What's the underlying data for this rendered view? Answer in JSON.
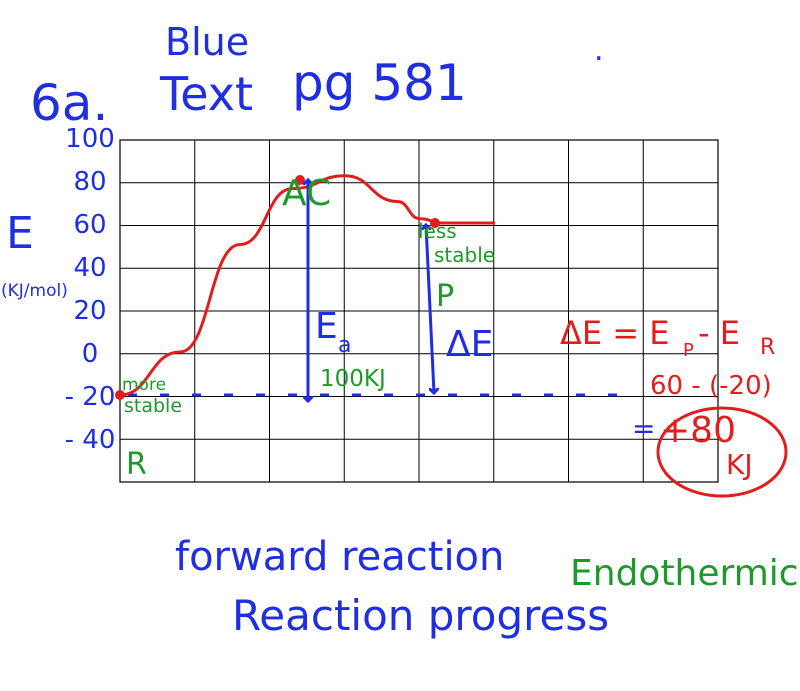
{
  "colors": {
    "blue": "#1f2ee0",
    "green": "#1f9a2a",
    "red": "#e21d1d",
    "grid": "#000000"
  },
  "header": {
    "problem_label": "6a.",
    "blue_label": "Blue",
    "text_label": "Text",
    "page_ref": "pg 581",
    "dot": "."
  },
  "chart_data": {
    "type": "line",
    "title": "",
    "xlabel": "Reaction progress",
    "ylabel": "E",
    "yunits": "(KJ/mol)",
    "yticks": [
      100,
      80,
      60,
      40,
      20,
      0,
      -20,
      -40
    ],
    "ylim": [
      -40,
      100
    ],
    "xlim": [
      0,
      8
    ],
    "grid": true,
    "series": [
      {
        "name": "",
        "x": [
          0,
          0.8,
          1.6,
          2.3,
          3.0,
          3.7,
          4.0,
          4.3,
          5.0
        ],
        "y": [
          -20,
          0,
          50,
          76,
          82,
          70,
          62,
          60,
          60
        ]
      }
    ],
    "points": [
      {
        "label": "R",
        "x": 0,
        "y": -20
      },
      {
        "label": "AC",
        "x": 2.4,
        "y": 80
      },
      {
        "label": "P",
        "x": 4.2,
        "y": 60
      }
    ],
    "annotations": {
      "reactant_label": "R",
      "reactant_note_1": "more",
      "reactant_note_2": "stable",
      "activated_complex_label": "AC",
      "product_label": "P",
      "product_note_1": "less",
      "product_note_2": "stable",
      "ea_symbol": "E",
      "ea_subscript": "a",
      "ea_value": "100KJ",
      "delta_e_label": "ΔE",
      "equation": "ΔE = E",
      "equation_p": "P",
      "equation_minus": "- E",
      "equation_r": "R",
      "calc": "60 - (-20)",
      "result": "+80",
      "result_units": "KJ",
      "reaction_direction": "forward reaction",
      "reaction_type": "Endothermic"
    }
  }
}
